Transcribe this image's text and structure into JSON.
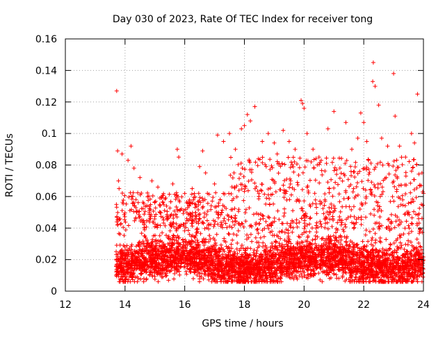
{
  "chart_data": {
    "type": "scatter",
    "title": "Day 030 of 2023, Rate Of TEC Index for receiver tong",
    "xlabel": "GPS time / hours",
    "ylabel": "ROTI / TECUs",
    "xlim": [
      12,
      24
    ],
    "ylim": [
      0,
      0.16
    ],
    "x_ticks": [
      12,
      14,
      16,
      18,
      20,
      22,
      24
    ],
    "y_ticks": [
      0,
      0.02,
      0.04,
      0.06,
      0.08,
      0.1,
      0.12,
      0.14,
      0.16
    ],
    "x_tick_labels": [
      "12",
      "14",
      "16",
      "18",
      "20",
      "22",
      "24"
    ],
    "y_tick_labels": [
      "0",
      "0.02",
      "0.04",
      "0.06",
      "0.08",
      "0.1",
      "0.12",
      "0.14",
      "0.16"
    ],
    "grid": true,
    "marker": "plus",
    "color": "#ff0000",
    "series": [
      {
        "name": "ROTI",
        "points": [
          [
            13.72,
            0.127
          ],
          [
            13.75,
            0.089
          ],
          [
            13.78,
            0.07
          ],
          [
            13.8,
            0.065
          ],
          [
            13.9,
            0.087
          ],
          [
            14.1,
            0.083
          ],
          [
            14.2,
            0.092
          ],
          [
            14.3,
            0.078
          ],
          [
            14.5,
            0.072
          ],
          [
            14.9,
            0.07
          ],
          [
            15.1,
            0.066
          ],
          [
            15.3,
            0.055
          ],
          [
            15.6,
            0.068
          ],
          [
            15.75,
            0.09
          ],
          [
            15.8,
            0.085
          ],
          [
            16.0,
            0.062
          ],
          [
            16.25,
            0.065
          ],
          [
            16.5,
            0.079
          ],
          [
            16.6,
            0.089
          ],
          [
            16.7,
            0.075
          ],
          [
            17.0,
            0.068
          ],
          [
            17.1,
            0.099
          ],
          [
            17.3,
            0.095
          ],
          [
            17.5,
            0.1
          ],
          [
            17.7,
            0.09
          ],
          [
            17.9,
            0.103
          ],
          [
            18.0,
            0.105
          ],
          [
            18.1,
            0.112
          ],
          [
            18.2,
            0.108
          ],
          [
            18.35,
            0.117
          ],
          [
            18.6,
            0.095
          ],
          [
            18.8,
            0.1
          ],
          [
            19.0,
            0.094
          ],
          [
            19.1,
            0.087
          ],
          [
            19.3,
            0.102
          ],
          [
            19.5,
            0.095
          ],
          [
            19.7,
            0.09
          ],
          [
            19.9,
            0.121
          ],
          [
            19.95,
            0.119
          ],
          [
            20.0,
            0.116
          ],
          [
            20.1,
            0.1
          ],
          [
            20.3,
            0.09
          ],
          [
            20.5,
            0.085
          ],
          [
            20.8,
            0.103
          ],
          [
            21.0,
            0.114
          ],
          [
            21.2,
            0.078
          ],
          [
            21.4,
            0.107
          ],
          [
            21.6,
            0.09
          ],
          [
            21.8,
            0.097
          ],
          [
            21.9,
            0.113
          ],
          [
            22.0,
            0.107
          ],
          [
            22.1,
            0.095
          ],
          [
            22.3,
            0.133
          ],
          [
            22.32,
            0.145
          ],
          [
            22.38,
            0.13
          ],
          [
            22.5,
            0.118
          ],
          [
            22.6,
            0.097
          ],
          [
            22.8,
            0.092
          ],
          [
            23.0,
            0.138
          ],
          [
            23.05,
            0.111
          ],
          [
            23.2,
            0.092
          ],
          [
            23.4,
            0.085
          ],
          [
            23.6,
            0.1
          ],
          [
            23.7,
            0.094
          ],
          [
            23.8,
            0.125
          ],
          [
            23.95,
            0.075
          ],
          [
            24.0,
            0.062
          ]
        ]
      }
    ]
  }
}
